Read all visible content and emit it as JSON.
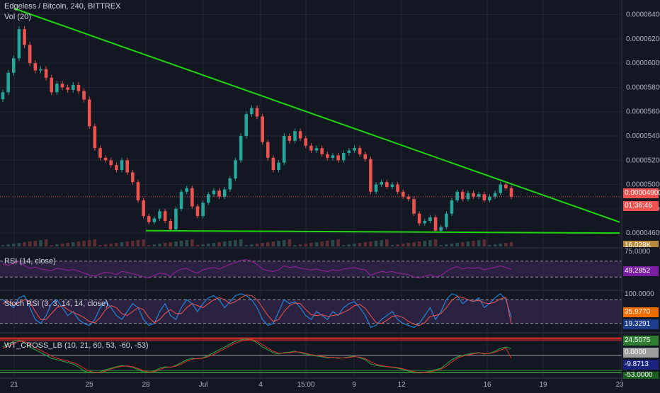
{
  "header": {
    "title": "Edgeless / Bitcoin, 240, BITTREX",
    "volume_label": "Vol (20)"
  },
  "colors": {
    "background": "#131722",
    "grid": "#232733",
    "up": "#26a69a",
    "down": "#ef5350",
    "trendline": "#1ed50f",
    "rsi_line": "#a020a0",
    "rsi_band": "#3b2a55",
    "stoch_k": "#2196f3",
    "stoch_d": "#ef5350",
    "wt1": "#26a643",
    "wt2": "#e03030"
  },
  "chart_data": {
    "type": "candlestick",
    "symbol": "Edgeless / Bitcoin",
    "timeframe": "240",
    "exchange": "BITTREX",
    "ylim": [
      4.49e-05,
      6.52e-05
    ],
    "y_ticks": [
      "0.00006400",
      "0.00006200",
      "0.00006000",
      "0.00005800",
      "0.00005600",
      "0.00005400",
      "0.00005200",
      "0.00005000",
      "0.00004800",
      "0.00004600"
    ],
    "x_ticks": [
      "21",
      "25",
      "28",
      "Jul",
      "4",
      "15:00",
      "9",
      "12",
      "16",
      "19",
      "23"
    ],
    "current_price": "0.00004900",
    "countdown": "01:36:46",
    "volume_value": "16.028K",
    "candles_close": [
      5.76e-05,
      5.92e-05,
      6.04e-05,
      6.28e-05,
      6.15e-05,
      6e-05,
      5.94e-05,
      5.95e-05,
      5.88e-05,
      5.76e-05,
      5.83e-05,
      5.8e-05,
      5.78e-05,
      5.82e-05,
      5.77e-05,
      5.7e-05,
      5.48e-05,
      5.3e-05,
      5.22e-05,
      5.2e-05,
      5.16e-05,
      5.12e-05,
      5.2e-05,
      5.1e-05,
      5.02e-05,
      4.87e-05,
      4.74e-05,
      4.69e-05,
      4.72e-05,
      4.78e-05,
      4.7e-05,
      4.63e-05,
      4.8e-05,
      4.94e-05,
      4.97e-05,
      4.82e-05,
      4.74e-05,
      4.85e-05,
      4.92e-05,
      4.95e-05,
      4.9e-05,
      4.96e-05,
      5.05e-05,
      5.2e-05,
      5.4e-05,
      5.58e-05,
      5.63e-05,
      5.56e-05,
      5.35e-05,
      5.22e-05,
      5.12e-05,
      5.18e-05,
      5.4e-05,
      5.36e-05,
      5.44e-05,
      5.38e-05,
      5.32e-05,
      5.28e-05,
      5.3e-05,
      5.25e-05,
      5.22e-05,
      5.24e-05,
      5.2e-05,
      5.26e-05,
      5.28e-05,
      5.3e-05,
      5.25e-05,
      5.21e-05,
      4.94e-05,
      5e-05,
      5.02e-05,
      4.98e-05,
      5e-05,
      4.94e-05,
      4.9e-05,
      4.88e-05,
      4.76e-05,
      4.68e-05,
      4.7e-05,
      4.73e-05,
      4.62e-05,
      4.65e-05,
      4.76e-05,
      4.87e-05,
      4.94e-05,
      4.88e-05,
      4.93e-05,
      4.9e-05,
      4.92e-05,
      4.87e-05,
      4.9e-05,
      4.93e-05,
      5e-05,
      4.97e-05,
      4.9e-05
    ],
    "trendlines": [
      {
        "from": [
          "21",
          6.45e-05
        ],
        "to": [
          "23",
          4.69e-05
        ]
      },
      {
        "from": [
          "28",
          4.62e-05
        ],
        "to": [
          "23",
          4.6e-05
        ]
      }
    ],
    "rsi": {
      "label": "RSI (14, close)",
      "value": "49.2852",
      "upper": "75.0000",
      "bands": [
        70,
        30
      ],
      "values": [
        62,
        60,
        64,
        70,
        58,
        52,
        55,
        50,
        48,
        46,
        52,
        50,
        47,
        49,
        45,
        40,
        35,
        32,
        38,
        42,
        40,
        36,
        44,
        42,
        38,
        35,
        30,
        28,
        34,
        40,
        38,
        32,
        44,
        50,
        52,
        44,
        40,
        48,
        52,
        54,
        50,
        56,
        62,
        66,
        72,
        74,
        70,
        62,
        50,
        46,
        44,
        48,
        58,
        54,
        56,
        52,
        50,
        48,
        50,
        46,
        44,
        48,
        46,
        50,
        52,
        54,
        50,
        48,
        34,
        40,
        44,
        42,
        44,
        40,
        38,
        36,
        30,
        28,
        32,
        36,
        30,
        34,
        44,
        52,
        56,
        50,
        54,
        52,
        54,
        48,
        52,
        54,
        58,
        54,
        49
      ]
    },
    "stoch_rsi": {
      "label": "Stoch RSI (3, 3, 14, 14, close)",
      "k_value": "35.9770",
      "d_value": "19.3291",
      "top": "100.0000",
      "k": [
        80,
        70,
        60,
        85,
        90,
        60,
        30,
        20,
        40,
        70,
        80,
        60,
        40,
        50,
        30,
        20,
        15,
        30,
        60,
        75,
        60,
        40,
        30,
        50,
        70,
        60,
        30,
        15,
        20,
        50,
        70,
        40,
        30,
        60,
        80,
        70,
        50,
        70,
        85,
        90,
        80,
        60,
        75,
        90,
        95,
        90,
        80,
        60,
        30,
        15,
        20,
        50,
        80,
        70,
        75,
        60,
        40,
        30,
        50,
        40,
        30,
        50,
        40,
        60,
        70,
        75,
        60,
        40,
        10,
        15,
        30,
        40,
        50,
        30,
        20,
        15,
        10,
        20,
        40,
        60,
        30,
        50,
        80,
        95,
        90,
        70,
        80,
        75,
        85,
        60,
        70,
        85,
        95,
        80,
        36
      ],
      "d": [
        70,
        75,
        68,
        72,
        80,
        75,
        50,
        30,
        30,
        45,
        60,
        65,
        55,
        48,
        42,
        35,
        25,
        22,
        35,
        55,
        65,
        60,
        45,
        40,
        50,
        60,
        55,
        35,
        22,
        30,
        45,
        55,
        45,
        45,
        60,
        70,
        65,
        60,
        70,
        80,
        85,
        80,
        70,
        75,
        85,
        92,
        90,
        80,
        60,
        40,
        25,
        30,
        50,
        65,
        72,
        70,
        55,
        42,
        40,
        42,
        38,
        40,
        42,
        48,
        55,
        65,
        68,
        58,
        40,
        22,
        20,
        28,
        38,
        40,
        35,
        25,
        18,
        15,
        22,
        38,
        40,
        45,
        60,
        78,
        88,
        85,
        80,
        76,
        78,
        72,
        70,
        74,
        82,
        86,
        19
      ]
    },
    "wt_cross": {
      "label": "WT_CROSS_LB (10, 21, 60, 53, -60, -53)",
      "wt1_value": "24.5075",
      "diff_value": "0.0000",
      "wt2_value": "-9.8713",
      "low_value": "-53.0000",
      "wt1": [
        30,
        40,
        50,
        55,
        45,
        30,
        20,
        10,
        0,
        -10,
        -15,
        -20,
        -25,
        -30,
        -40,
        -55,
        -60,
        -62,
        -58,
        -50,
        -45,
        -40,
        -35,
        -38,
        -42,
        -50,
        -58,
        -60,
        -55,
        -45,
        -40,
        -42,
        -35,
        -25,
        -15,
        -10,
        -12,
        -8,
        0,
        10,
        20,
        30,
        40,
        50,
        55,
        58,
        55,
        45,
        30,
        20,
        10,
        5,
        10,
        12,
        15,
        10,
        5,
        0,
        -2,
        -5,
        -8,
        -6,
        -10,
        -8,
        -5,
        -3,
        -8,
        -15,
        -30,
        -35,
        -38,
        -40,
        -42,
        -45,
        -50,
        -55,
        -60,
        -62,
        -60,
        -55,
        -50,
        -45,
        -30,
        -15,
        -5,
        0,
        5,
        8,
        10,
        5,
        8,
        15,
        25,
        30,
        24.5
      ],
      "wt2": [
        25,
        32,
        42,
        50,
        50,
        40,
        28,
        18,
        8,
        -2,
        -10,
        -15,
        -20,
        -25,
        -33,
        -45,
        -55,
        -60,
        -60,
        -55,
        -48,
        -42,
        -38,
        -37,
        -40,
        -46,
        -54,
        -58,
        -57,
        -50,
        -43,
        -41,
        -38,
        -30,
        -20,
        -13,
        -11,
        -10,
        -4,
        4,
        14,
        24,
        34,
        44,
        50,
        55,
        56,
        50,
        38,
        26,
        15,
        8,
        8,
        10,
        13,
        12,
        8,
        3,
        0,
        -3,
        -6,
        -7,
        -8,
        -9,
        -7,
        -4,
        -6,
        -11,
        -22,
        -31,
        -36,
        -39,
        -41,
        -43,
        -47,
        -52,
        -57,
        -60,
        -61,
        -58,
        -53,
        -48,
        -38,
        -23,
        -10,
        -3,
        2,
        6,
        9,
        7,
        7,
        11,
        19,
        26,
        -9.87
      ]
    }
  }
}
